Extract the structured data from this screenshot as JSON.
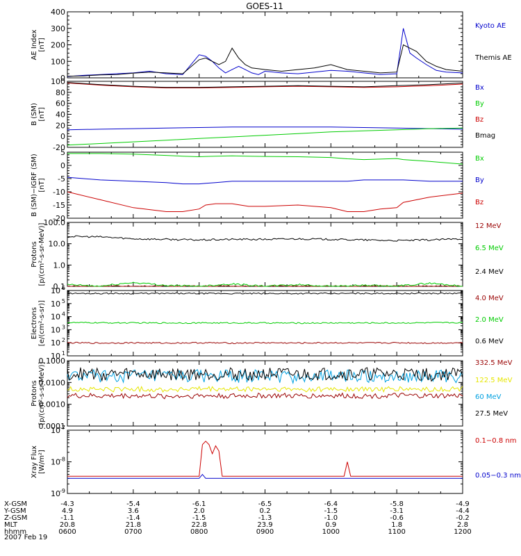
{
  "title": "GOES-11",
  "footer_date": "2007 Feb 19",
  "colors": {
    "black": "#000000",
    "blue": "#0000cc",
    "red": "#cc0000",
    "darkred": "#990000",
    "green": "#00cc00",
    "yellow": "#e6e600",
    "cyan": "#00a0e0"
  },
  "chart_data": [
    {
      "type": "line",
      "id": "ae",
      "ylabel": [
        "AE Index",
        "[nT]"
      ],
      "scale": "linear",
      "ylim": [
        0,
        400
      ],
      "ticks": [
        {
          "v": 0,
          "l": "0"
        },
        {
          "v": 100,
          "l": "100"
        },
        {
          "v": 200,
          "l": "200"
        },
        {
          "v": 300,
          "l": "300"
        },
        {
          "v": 400,
          "l": "400"
        }
      ],
      "minor": 4,
      "x": [
        6.0,
        6.25,
        6.5,
        6.75,
        7.0,
        7.25,
        7.5,
        7.75,
        8.0,
        8.1,
        8.2,
        8.3,
        8.4,
        8.5,
        8.6,
        8.7,
        8.8,
        8.9,
        9.0,
        9.25,
        9.5,
        9.75,
        10.0,
        10.25,
        10.5,
        10.75,
        11.0,
        11.1,
        11.2,
        11.3,
        11.45,
        11.6,
        11.75,
        12.0
      ],
      "series": [
        {
          "name": "Kyoto AE",
          "color": "#0000cc",
          "values": [
            8,
            15,
            20,
            25,
            30,
            40,
            25,
            20,
            140,
            130,
            100,
            60,
            30,
            50,
            70,
            50,
            30,
            20,
            40,
            30,
            25,
            35,
            45,
            40,
            30,
            20,
            25,
            300,
            150,
            120,
            80,
            45,
            35,
            30
          ]
        },
        {
          "name": "Themis AE",
          "color": "#000000",
          "values": [
            10,
            12,
            18,
            20,
            28,
            35,
            30,
            25,
            110,
            120,
            100,
            80,
            100,
            180,
            120,
            80,
            60,
            55,
            50,
            40,
            50,
            60,
            80,
            50,
            40,
            30,
            35,
            200,
            180,
            160,
            100,
            70,
            50,
            40
          ]
        }
      ]
    },
    {
      "type": "line",
      "id": "b",
      "ylabel": [
        "B (SM)",
        "[nT]"
      ],
      "scale": "linear",
      "ylim": [
        -20,
        100
      ],
      "ticks": [
        {
          "v": -20,
          "l": "-20"
        },
        {
          "v": 0,
          "l": "0"
        },
        {
          "v": 20,
          "l": "20"
        },
        {
          "v": 40,
          "l": "40"
        },
        {
          "v": 60,
          "l": "60"
        },
        {
          "v": 80,
          "l": "80"
        },
        {
          "v": 100,
          "l": "100"
        }
      ],
      "minor": 4,
      "x": [
        6.0,
        6.5,
        7.0,
        7.5,
        8.0,
        8.5,
        9.0,
        9.5,
        10.0,
        10.5,
        11.0,
        11.5,
        12.0
      ],
      "series": [
        {
          "name": "Bx",
          "color": "#0000cc",
          "values": [
            12,
            13,
            14,
            15,
            16,
            17,
            17,
            17,
            17,
            16,
            15,
            14,
            13
          ]
        },
        {
          "name": "By",
          "color": "#00cc00",
          "values": [
            -16,
            -13,
            -10,
            -7,
            -4,
            -1,
            2,
            5,
            8,
            10,
            12,
            14,
            15
          ]
        },
        {
          "name": "Bz",
          "color": "#cc0000",
          "values": [
            97,
            93,
            90,
            88,
            88,
            89,
            90,
            91,
            90,
            89,
            90,
            92,
            95
          ]
        },
        {
          "name": "Bmag",
          "color": "#000000",
          "values": [
            98,
            94,
            91,
            89,
            89,
            90,
            91,
            92,
            91,
            90,
            92,
            94,
            97
          ]
        }
      ]
    },
    {
      "type": "line",
      "id": "bigrf",
      "ylabel": [
        "B (SM)−IGRF (SM)",
        "[nT]"
      ],
      "scale": "linear",
      "ylim": [
        -20,
        5
      ],
      "ticks": [
        {
          "v": -20,
          "l": "-20"
        },
        {
          "v": -15,
          "l": "-15"
        },
        {
          "v": -10,
          "l": "-10"
        },
        {
          "v": -5,
          "l": "-5"
        },
        {
          "v": 0,
          "l": "0"
        },
        {
          "v": 5,
          "l": "5"
        }
      ],
      "minor": 5,
      "x": [
        6.0,
        6.5,
        7.0,
        7.5,
        7.75,
        8.0,
        8.1,
        8.25,
        8.5,
        8.75,
        9.0,
        9.5,
        10.0,
        10.25,
        10.5,
        10.75,
        11.0,
        11.1,
        11.5,
        12.0
      ],
      "series": [
        {
          "name": "Bx",
          "color": "#00cc00",
          "values": [
            4.5,
            4.5,
            4.3,
            3.8,
            3.5,
            3.3,
            3.4,
            3.5,
            3.6,
            3.5,
            3.4,
            3.3,
            3.0,
            2.5,
            2.2,
            2.4,
            2.6,
            2.2,
            1.5,
            0.5
          ]
        },
        {
          "name": "By",
          "color": "#0000cc",
          "values": [
            -4.5,
            -5.5,
            -6.0,
            -6.5,
            -7.0,
            -7.0,
            -6.8,
            -6.5,
            -6.0,
            -6.0,
            -6.0,
            -6.0,
            -6.0,
            -6.0,
            -5.5,
            -5.5,
            -5.5,
            -5.5,
            -6.0,
            -6.0
          ]
        },
        {
          "name": "Bz",
          "color": "#cc0000",
          "values": [
            -10.0,
            -13.0,
            -16.0,
            -17.5,
            -17.5,
            -16.5,
            -15.0,
            -14.5,
            -14.5,
            -15.5,
            -15.5,
            -15.0,
            -16.0,
            -17.5,
            -17.5,
            -16.5,
            -16.0,
            -14.0,
            -12.0,
            -10.5
          ]
        }
      ]
    },
    {
      "type": "line",
      "id": "protons_low",
      "ylabel": [
        "Protons",
        "[p/(cm²-s-sr-MeV)]"
      ],
      "scale": "log",
      "ylim": [
        0.1,
        100
      ],
      "ticks": [
        {
          "v": 0.1,
          "l": "0.1"
        },
        {
          "v": 1,
          "l": "1.0"
        },
        {
          "v": 10,
          "l": "10.0"
        },
        {
          "v": 100,
          "l": "100.0"
        }
      ],
      "x": [
        6.0,
        6.5,
        7.0,
        7.5,
        8.0,
        8.5,
        9.0,
        9.5,
        10.0,
        10.5,
        11.0,
        11.5,
        12.0
      ],
      "series": [
        {
          "name": "12 MeV",
          "color": "#990000",
          "values": [
            0.1,
            0.1,
            0.1,
            0.1,
            0.1,
            0.1,
            0.1,
            0.1,
            0.1,
            0.1,
            0.1,
            0.1,
            0.1
          ]
        },
        {
          "name": "6.5 MeV",
          "color": "#00cc00",
          "values": [
            0.12,
            0.1,
            0.15,
            0.11,
            0.1,
            0.13,
            0.1,
            0.12,
            0.1,
            0.11,
            0.1,
            0.14,
            0.1
          ]
        },
        {
          "name": "2.4 MeV",
          "color": "#000000",
          "values": [
            22,
            21,
            17,
            16,
            15,
            16,
            16,
            17,
            16,
            15,
            14,
            15,
            17
          ]
        }
      ]
    },
    {
      "type": "line",
      "id": "electrons",
      "ylabel": [
        "Electrons",
        "[e/(cm²-s-sr)]"
      ],
      "scale": "log",
      "ylim": [
        10,
        1000000
      ],
      "ticks": [
        {
          "v": 10,
          "l": "10",
          "e": "1"
        },
        {
          "v": 100,
          "l": "10",
          "e": "2"
        },
        {
          "v": 1000,
          "l": "10",
          "e": "3"
        },
        {
          "v": 10000,
          "l": "10",
          "e": "4"
        },
        {
          "v": 100000,
          "l": "10",
          "e": "5"
        },
        {
          "v": 1000000,
          "l": "10",
          "e": "6"
        }
      ],
      "x": [
        6.0,
        6.5,
        7.0,
        7.5,
        8.0,
        8.5,
        9.0,
        9.5,
        10.0,
        10.5,
        11.0,
        11.5,
        12.0
      ],
      "series": [
        {
          "name": "4.0 MeV",
          "color": "#990000",
          "values": [
            100,
            95,
            100,
            95,
            100,
            95,
            100,
            95,
            100,
            95,
            100,
            95,
            100
          ]
        },
        {
          "name": "2.0 MeV",
          "color": "#00cc00",
          "values": [
            3500,
            3400,
            3300,
            3300,
            3300,
            3300,
            3300,
            3200,
            3300,
            3300,
            3300,
            3400,
            3500
          ]
        },
        {
          "name": "0.6 MeV",
          "color": "#000000",
          "values": [
            600000,
            600000,
            600000,
            590000,
            590000,
            590000,
            590000,
            590000,
            590000,
            600000,
            600000,
            600000,
            600000
          ]
        }
      ]
    },
    {
      "type": "line",
      "id": "protons_high",
      "ylabel": [
        "Protons",
        "[p/(cm²-s-sr-MeV)]"
      ],
      "scale": "log",
      "ylim": [
        0.0001,
        0.1
      ],
      "ticks": [
        {
          "v": 0.0001,
          "l": "0.0001"
        },
        {
          "v": 0.001,
          "l": "0.0010"
        },
        {
          "v": 0.01,
          "l": "0.0100"
        },
        {
          "v": 0.1,
          "l": "0.1000"
        }
      ],
      "x": [
        6.0,
        6.5,
        7.0,
        7.5,
        8.0,
        8.5,
        9.0,
        9.5,
        10.0,
        10.5,
        11.0,
        11.5,
        12.0
      ],
      "series": [
        {
          "name": "332.5 MeV",
          "color": "#990000",
          "values": [
            0.0025,
            0.0024,
            0.0025,
            0.0023,
            0.0025,
            0.0024,
            0.0025,
            0.0024,
            0.0025,
            0.0024,
            0.0025,
            0.0024,
            0.0025
          ]
        },
        {
          "name": "122.5 MeV",
          "color": "#e6e600",
          "values": [
            0.005,
            0.0048,
            0.005,
            0.0047,
            0.005,
            0.0048,
            0.005,
            0.0047,
            0.005,
            0.0048,
            0.005,
            0.0047,
            0.005
          ]
        },
        {
          "name": "60 MeV",
          "color": "#00a0e0",
          "values": [
            0.02,
            0.019,
            0.02,
            0.018,
            0.02,
            0.019,
            0.02,
            0.018,
            0.02,
            0.019,
            0.02,
            0.018,
            0.02
          ]
        },
        {
          "name": "27.5 MeV",
          "color": "#000000",
          "values": [
            0.025,
            0.024,
            0.025,
            0.023,
            0.025,
            0.024,
            0.025,
            0.023,
            0.025,
            0.024,
            0.025,
            0.023,
            0.025
          ]
        }
      ]
    },
    {
      "type": "line",
      "id": "xray",
      "ylabel": [
        "Xray Flux",
        "[W/m²]"
      ],
      "scale": "log",
      "ylim": [
        1e-09,
        1e-07
      ],
      "ticks": [
        {
          "v": 1e-09,
          "l": "10",
          "e": "-9"
        },
        {
          "v": 1e-08,
          "l": "10",
          "e": "-8"
        },
        {
          "v": 1e-07,
          "l": "10",
          "e": "-7"
        }
      ],
      "x": [
        6.0,
        7.0,
        8.0,
        8.05,
        8.1,
        8.15,
        8.2,
        8.25,
        8.3,
        8.35,
        8.4,
        8.45,
        8.5,
        9.0,
        10.0,
        10.2,
        10.25,
        10.3,
        10.35,
        11.0,
        12.0
      ],
      "series": [
        {
          "name": "0.1−0.8 nm",
          "color": "#cc0000",
          "values": [
            3.5e-09,
            3.5e-09,
            3.5e-09,
            3.5e-08,
            4.5e-08,
            3.5e-08,
            1.8e-08,
            3.2e-08,
            2.2e-08,
            3.5e-09,
            3.5e-09,
            3.5e-09,
            3.5e-09,
            3.5e-09,
            3.5e-09,
            3.5e-09,
            1e-08,
            3.5e-09,
            3.5e-09,
            3.5e-09,
            3.5e-09
          ]
        },
        {
          "name": "0.05−0.3 nm",
          "color": "#0000cc",
          "values": [
            3e-09,
            3e-09,
            3e-09,
            4e-09,
            3e-09,
            3e-09,
            3e-09,
            3e-09,
            3e-09,
            3e-09,
            3e-09,
            3e-09,
            3e-09,
            3e-09,
            3e-09,
            3e-09,
            3e-09,
            3e-09,
            3e-09,
            3e-09,
            3e-09
          ]
        }
      ]
    }
  ],
  "xaxis": {
    "ticks": [
      6,
      7,
      8,
      9,
      10,
      11,
      12
    ],
    "minor_per_hour": 3,
    "rows": [
      {
        "label": "X-GSM",
        "values": [
          "-4.3",
          "-5.4",
          "-6.1",
          "-6.5",
          "-6.4",
          "-5.8",
          "-4.9"
        ]
      },
      {
        "label": "Y-GSM",
        "values": [
          "4.9",
          "3.6",
          "2.0",
          "0.2",
          "-1.5",
          "-3.1",
          "-4.4"
        ]
      },
      {
        "label": "Z-GSM",
        "values": [
          "-1.1",
          "-1.4",
          "-1.5",
          "-1.3",
          "-1.0",
          "-0.6",
          "-0.2"
        ]
      },
      {
        "label": "MLT",
        "values": [
          "20.8",
          "21.8",
          "22.8",
          "23.9",
          "0.9",
          "1.8",
          "2.8"
        ]
      },
      {
        "label": "hhmm",
        "values": [
          "0600",
          "0700",
          "0800",
          "0900",
          "1000",
          "1100",
          "1200"
        ]
      }
    ]
  }
}
